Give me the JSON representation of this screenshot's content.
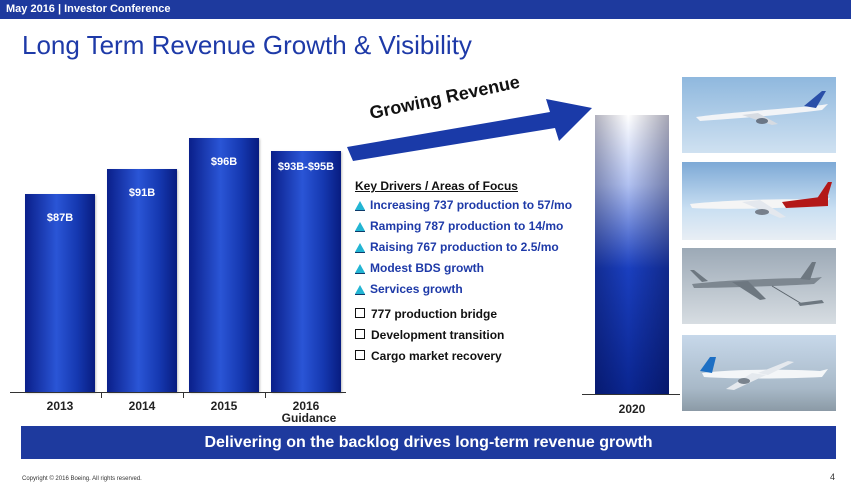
{
  "header": {
    "conference": "May 2016 | Investor Conference"
  },
  "title": "Long Term Revenue Growth & Visibility",
  "chart_data": {
    "type": "bar",
    "categories": [
      "2013",
      "2014",
      "2015",
      "2016"
    ],
    "category_sublabels": [
      "",
      "",
      "",
      "Guidance"
    ],
    "values": [
      87,
      91,
      96,
      94
    ],
    "value_labels": [
      "$87B",
      "$91B",
      "$96B",
      "$93B-$95B"
    ],
    "ylabel": "",
    "ylim": [
      0,
      100
    ],
    "projection": {
      "category": "2020",
      "arrow_label": "Growing Revenue"
    }
  },
  "drivers": {
    "title": "Key Drivers / Areas of Focus",
    "growth": [
      "Increasing 737 production to 57/mo",
      "Ramping 787 production to 14/mo",
      "Raising 767 production to 2.5/mo",
      "Modest BDS growth",
      "Services growth"
    ],
    "other": [
      "777 production bridge",
      "Development transition",
      "Cargo market recovery"
    ]
  },
  "footer": {
    "banner": "Delivering on the backlog drives long-term revenue growth",
    "copyright": "Copyright © 2016 Boeing. All rights reserved.",
    "page": "4"
  },
  "colors": {
    "brand": "#1e3a9e",
    "bar": "#1538b0",
    "triangle": "#23b5d3"
  }
}
